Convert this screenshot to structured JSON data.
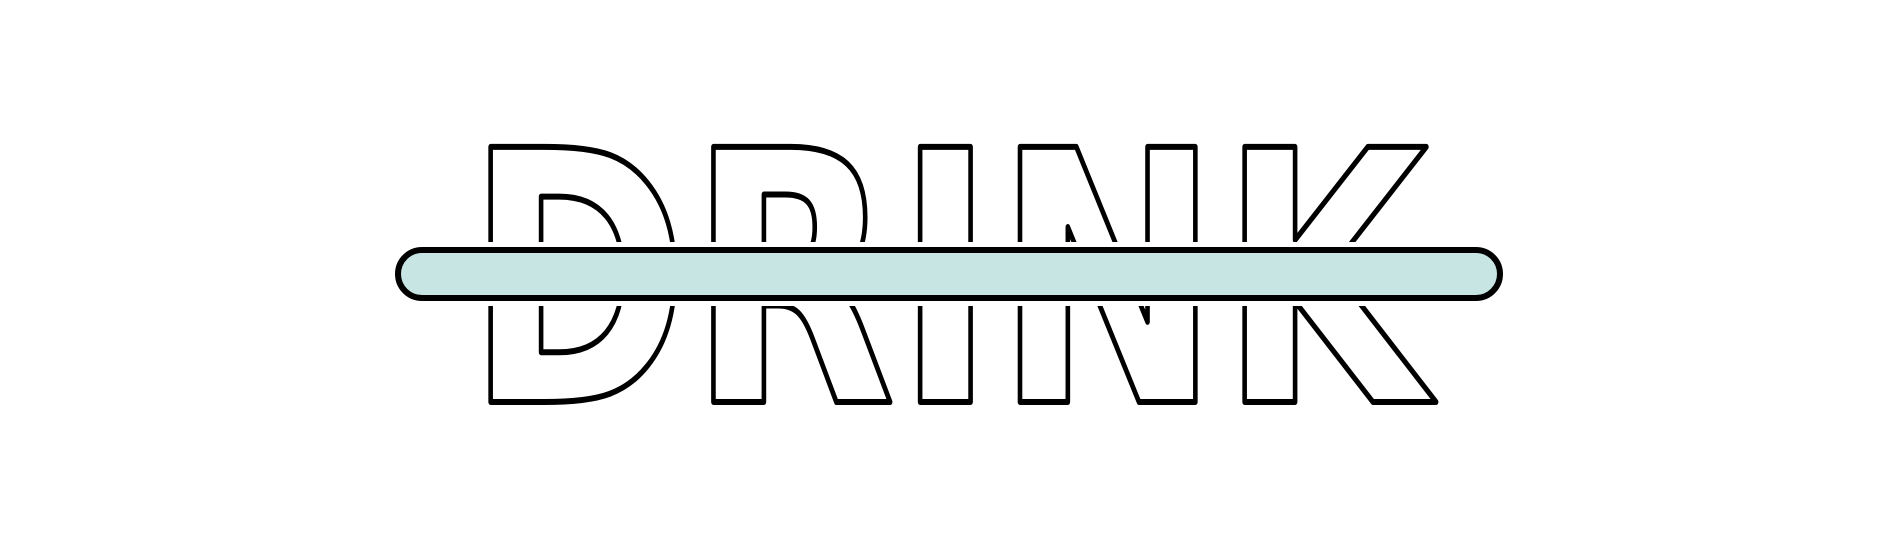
{
  "logo": {
    "word": "DRINK"
  }
}
